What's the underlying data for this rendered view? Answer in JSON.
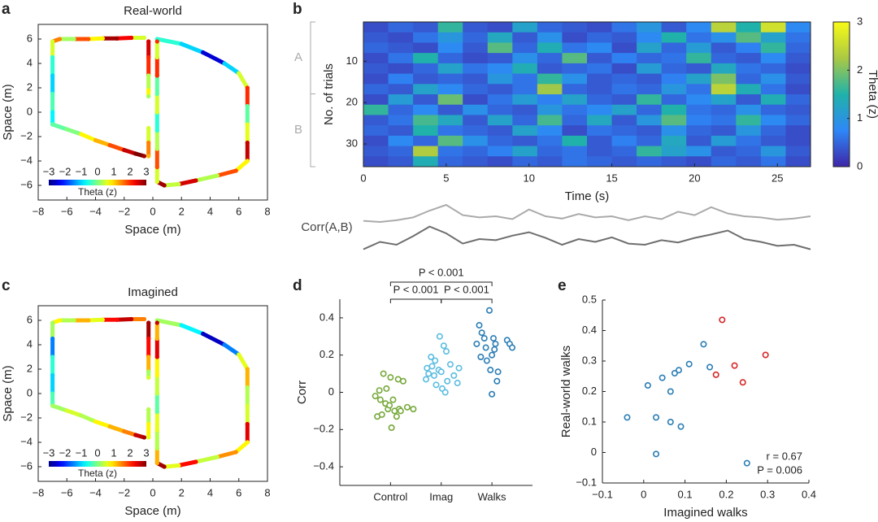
{
  "chart_data": [
    {
      "type": "trajectory",
      "panel": "a",
      "title": "Real-world",
      "xlabel": "Space (m)",
      "ylabel": "Space (m)",
      "xlim": [
        -8,
        8
      ],
      "ylim": [
        -7.2,
        7.2
      ],
      "xticks": [
        {
          "value": -8,
          "label": "−8"
        },
        {
          "value": -6,
          "label": "−6"
        },
        {
          "value": -4,
          "label": "−4"
        },
        {
          "value": -2,
          "label": "−2"
        },
        0,
        2,
        4,
        6,
        8
      ],
      "yticks": [
        {
          "value": -6,
          "label": "−6"
        },
        {
          "value": -4,
          "label": "−4"
        },
        {
          "value": -2,
          "label": "−2"
        },
        0,
        2,
        4,
        6
      ],
      "x": [
        -0.6,
        -1.5,
        -2.5,
        -3.5,
        -4.5,
        -5.5,
        -6.5,
        -7,
        -7,
        -7,
        -7,
        -7,
        -7,
        -6,
        -5,
        -4,
        -3,
        -2,
        -1.2,
        -0.6,
        null,
        -0.3,
        -0.3,
        -0.3,
        -0.3,
        -0.3,
        null,
        -0.3,
        -0.3,
        -0.3,
        null,
        0.3,
        2,
        3.5,
        5,
        6,
        6.6,
        6.6,
        6.6,
        6.6,
        6.6,
        5.8,
        4.5,
        3,
        1.8,
        0.8,
        0.3,
        0.3,
        0.3,
        0.3,
        0.3,
        0.3,
        0.3,
        0.3,
        0.3
      ],
      "y": [
        6.1,
        6.1,
        6.05,
        6.05,
        6,
        6,
        6,
        5.8,
        4.5,
        3,
        1.5,
        0,
        -1,
        -1.4,
        -1.8,
        -2.3,
        -2.7,
        -3.1,
        -3.4,
        -3.6,
        null,
        5.8,
        4.5,
        3,
        1.8,
        1.3,
        null,
        -1.3,
        -2.5,
        -3.6,
        null,
        6,
        5.6,
        4.9,
        4,
        3.2,
        2,
        0.5,
        -1,
        -2.5,
        -4,
        -4.8,
        -5.2,
        -5.6,
        -5.9,
        -6,
        -5.7,
        -4.5,
        -3,
        -1.5,
        0,
        1.5,
        3,
        4.5,
        5.8
      ],
      "theta": [
        0.5,
        2.3,
        2.8,
        0.8,
        1.8,
        0.2,
        1.5,
        0.5,
        -0.5,
        -1,
        -0.3,
        -0.8,
        -0.2,
        0,
        0.8,
        1.2,
        1.8,
        2.6,
        3,
        2.8,
        null,
        2.5,
        2,
        0.3,
        0.8,
        0.2,
        null,
        0.5,
        1.5,
        1.2,
        null,
        -0.5,
        -1,
        -2.5,
        -1,
        0.5,
        2,
        -0.2,
        0.6,
        2.6,
        0.8,
        1.8,
        0.3,
        2.5,
        0.4,
        2.8,
        0.5,
        1.8,
        0.3,
        -0.5,
        0.5,
        -0.2,
        2,
        0.5,
        2
      ],
      "colorbar": {
        "label": "Theta (z)",
        "lim": [
          -3,
          3
        ],
        "ticks": [
          {
            "value": -3,
            "label": "−3"
          },
          {
            "value": -2,
            "label": "−2"
          },
          {
            "value": -1,
            "label": "−1"
          },
          0,
          1,
          2,
          3
        ]
      }
    },
    {
      "type": "heatmap",
      "panel": "b",
      "xlabel": "Time (s)",
      "ylabel": "No. of trials",
      "xlim": [
        0,
        27
      ],
      "ylim": [
        0.5,
        35.5
      ],
      "xticks": [
        0,
        5,
        10,
        15,
        20,
        25
      ],
      "yticks": [
        10,
        20,
        30
      ],
      "xbins": [
        0,
        1.5,
        3,
        4.5,
        6,
        7.5,
        9,
        10.5,
        12,
        13.5,
        15,
        16.5,
        18,
        19.5,
        21,
        22.5,
        24,
        25.5,
        27
      ],
      "ybins": [
        0.5,
        3,
        5.5,
        8,
        10.5,
        13,
        15.5,
        18,
        20.5,
        23,
        25.5,
        28,
        30.5,
        33,
        35.5
      ],
      "z": [
        [
          0.3,
          0.5,
          0.4,
          1.6,
          0.4,
          0.3,
          1.2,
          0.5,
          0.4,
          0.3,
          0.6,
          1.0,
          0.4,
          0.8,
          2.4,
          1.5,
          2.6,
          0.8
        ],
        [
          0.4,
          0.3,
          0.6,
          1.0,
          0.5,
          1.3,
          0.4,
          0.9,
          0.3,
          0.5,
          0.4,
          0.8,
          1.5,
          0.6,
          0.9,
          1.8,
          1.2,
          0.6
        ],
        [
          0.5,
          0.4,
          0.3,
          0.8,
          0.4,
          1.8,
          0.5,
          1.4,
          0.6,
          0.8,
          0.3,
          1.2,
          0.5,
          1.1,
          0.4,
          0.7,
          1.6,
          0.5
        ],
        [
          0.3,
          0.6,
          1.5,
          0.5,
          0.3,
          0.4,
          0.9,
          0.5,
          1.8,
          0.4,
          0.7,
          0.5,
          0.6,
          1.6,
          0.5,
          0.4,
          0.8,
          0.4
        ],
        [
          0.4,
          0.3,
          0.5,
          1.2,
          0.6,
          0.8,
          1.4,
          0.4,
          0.5,
          0.6,
          0.3,
          1.1,
          0.5,
          0.4,
          1.3,
          0.6,
          0.5,
          0.3
        ],
        [
          0.3,
          0.7,
          0.4,
          0.5,
          0.4,
          1.0,
          0.6,
          1.6,
          0.9,
          0.4,
          0.5,
          0.4,
          0.7,
          1.2,
          2.0,
          0.5,
          0.9,
          0.4
        ],
        [
          0.5,
          0.4,
          1.2,
          0.8,
          0.5,
          0.4,
          0.6,
          2.2,
          0.5,
          0.4,
          0.6,
          0.5,
          1.0,
          0.6,
          2.4,
          1.4,
          0.6,
          0.3
        ],
        [
          0.3,
          1.1,
          0.4,
          1.9,
          0.3,
          0.6,
          1.1,
          0.7,
          1.2,
          0.5,
          0.4,
          1.6,
          0.5,
          0.8,
          1.2,
          0.4,
          1.4,
          0.5
        ],
        [
          1.6,
          0.5,
          0.8,
          0.4,
          0.9,
          0.5,
          0.4,
          1.0,
          0.6,
          0.8,
          1.2,
          0.5,
          1.5,
          0.6,
          0.5,
          0.9,
          0.5,
          0.4
        ],
        [
          0.4,
          0.6,
          1.7,
          1.3,
          0.4,
          1.2,
          0.5,
          1.7,
          0.5,
          1.3,
          0.4,
          1.0,
          1.8,
          0.7,
          0.6,
          1.6,
          0.8,
          0.5
        ],
        [
          0.5,
          0.4,
          1.5,
          0.6,
          0.5,
          0.4,
          1.2,
          0.8,
          0.3,
          0.6,
          0.5,
          0.4,
          0.9,
          0.5,
          0.4,
          1.0,
          0.5,
          0.3
        ],
        [
          0.3,
          0.8,
          0.5,
          1.8,
          0.9,
          0.5,
          0.4,
          0.6,
          1.5,
          0.4,
          0.7,
          0.5,
          1.3,
          0.4,
          1.1,
          0.6,
          0.4,
          0.3
        ],
        [
          0.4,
          0.5,
          2.3,
          0.6,
          0.5,
          0.7,
          1.2,
          0.5,
          0.6,
          0.4,
          0.5,
          1.6,
          1.2,
          0.9,
          0.4,
          0.5,
          1.0,
          0.4
        ],
        [
          0.3,
          0.4,
          1.4,
          0.5,
          0.4,
          0.3,
          0.5,
          0.4,
          0.6,
          0.5,
          0.4,
          0.5,
          0.4,
          0.3,
          0.5,
          0.4,
          0.6,
          0.3
        ]
      ],
      "groups": [
        {
          "label": "A",
          "range": [
            0.5,
            17.9
          ]
        },
        {
          "label": "B",
          "range": [
            17.9,
            35.5
          ]
        }
      ],
      "colorbar": {
        "label": "Theta (z)",
        "lim": [
          0,
          3
        ],
        "ticks": [
          0,
          1,
          2,
          3
        ]
      }
    },
    {
      "type": "line",
      "label": "Corr(A,B)",
      "xlim": [
        0,
        27
      ],
      "ylim": [
        0,
        1
      ],
      "x": [
        0,
        1,
        2,
        3,
        4,
        5,
        6,
        7,
        8,
        9,
        10,
        11,
        12,
        13,
        14,
        15,
        16,
        17,
        18,
        19,
        20,
        21,
        22,
        23,
        24,
        25,
        26,
        27
      ],
      "series": [
        {
          "color": "#aaaaaa",
          "values": [
            0.62,
            0.6,
            0.63,
            0.68,
            0.8,
            0.9,
            0.72,
            0.68,
            0.7,
            0.65,
            0.82,
            0.7,
            0.66,
            0.74,
            0.68,
            0.7,
            0.63,
            0.7,
            0.65,
            0.78,
            0.72,
            0.86,
            0.75,
            0.7,
            0.68,
            0.64,
            0.66,
            0.7
          ]
        },
        {
          "color": "#6e6e6e",
          "values": [
            0.12,
            0.25,
            0.2,
            0.35,
            0.52,
            0.4,
            0.22,
            0.3,
            0.28,
            0.36,
            0.42,
            0.32,
            0.2,
            0.3,
            0.25,
            0.33,
            0.22,
            0.2,
            0.28,
            0.24,
            0.32,
            0.38,
            0.45,
            0.3,
            0.25,
            0.18,
            0.2,
            0.12
          ]
        }
      ]
    },
    {
      "type": "trajectory",
      "panel": "c",
      "title": "Imagined",
      "xlabel": "Space (m)",
      "ylabel": "Space (m)",
      "xlim": [
        -8,
        8
      ],
      "ylim": [
        -7.2,
        7.2
      ],
      "xticks": [
        {
          "value": -8,
          "label": "−8"
        },
        {
          "value": -6,
          "label": "−6"
        },
        {
          "value": -4,
          "label": "−4"
        },
        {
          "value": -2,
          "label": "−2"
        },
        0,
        2,
        4,
        6,
        8
      ],
      "yticks": [
        {
          "value": -6,
          "label": "−6"
        },
        {
          "value": -4,
          "label": "−4"
        },
        {
          "value": -2,
          "label": "−2"
        },
        0,
        2,
        4,
        6
      ],
      "x": [
        -0.6,
        -1.5,
        -2.5,
        -3.5,
        -4.5,
        -5.5,
        -6.5,
        -7,
        -7,
        -7,
        -7,
        -7,
        -7,
        -6,
        -5,
        -4,
        -3,
        -2,
        -1.2,
        -0.6,
        null,
        -0.3,
        -0.3,
        -0.3,
        -0.3,
        -0.3,
        null,
        -0.3,
        -0.3,
        -0.3,
        null,
        0.3,
        2,
        3.5,
        5,
        6,
        6.6,
        6.6,
        6.6,
        6.6,
        6.6,
        5.8,
        4.5,
        3,
        1.8,
        0.8,
        0.3,
        0.3,
        0.3,
        0.3,
        0.3,
        0.3,
        0.3,
        0.3,
        0.3
      ],
      "y": [
        6.1,
        6.1,
        6.05,
        6.05,
        6,
        6,
        6,
        5.8,
        4.5,
        3,
        1.5,
        0,
        -1,
        -1.4,
        -1.8,
        -2.3,
        -2.7,
        -3.1,
        -3.4,
        -3.6,
        null,
        5.8,
        4.5,
        3,
        1.8,
        1.3,
        null,
        -1.3,
        -2.5,
        -3.6,
        null,
        6,
        5.6,
        4.9,
        4,
        3.2,
        2,
        0.5,
        -1,
        -2.5,
        -4,
        -4.8,
        -5.2,
        -5.6,
        -5.9,
        -6,
        -5.7,
        -4.5,
        -3,
        -1.5,
        0,
        1.5,
        3,
        4.5,
        5.8
      ],
      "theta": [
        1.5,
        2.6,
        2.2,
        0.6,
        1.2,
        0.3,
        0.8,
        0.2,
        -1.5,
        -0.5,
        -1,
        -0.3,
        0.2,
        0.5,
        0.3,
        0.8,
        1.2,
        1.5,
        2.6,
        2.8,
        null,
        2.8,
        2.2,
        1.2,
        0.2,
        0.5,
        null,
        0.3,
        0.8,
        0.6,
        null,
        0.2,
        -0.8,
        -2.6,
        -1.5,
        0.6,
        1.2,
        0.3,
        0.5,
        2.4,
        0.8,
        1.4,
        0.4,
        2.2,
        0.6,
        2.8,
        1.2,
        0.3,
        0.6,
        -0.2,
        0.4,
        0.8,
        2.4,
        1.2,
        2.6
      ],
      "colorbar": {
        "label": "Theta (z)",
        "lim": [
          -3,
          3
        ],
        "ticks": [
          {
            "value": -3,
            "label": "−3"
          },
          {
            "value": -2,
            "label": "−2"
          },
          {
            "value": -1,
            "label": "−1"
          },
          0,
          1,
          2,
          3
        ]
      }
    },
    {
      "type": "scatter",
      "panel": "d",
      "ylabel": "Corr",
      "xlim": [
        0,
        3.8
      ],
      "ylim": [
        -0.5,
        0.5
      ],
      "xticks": [
        {
          "value": 1,
          "label": "Control"
        },
        {
          "value": 2,
          "label": "Imag"
        },
        {
          "value": 3,
          "label": "Walks"
        }
      ],
      "yticks": [
        {
          "value": -0.4,
          "label": "−0.4"
        },
        {
          "value": -0.2,
          "label": "−0.2"
        },
        0,
        0.2,
        0.4
      ],
      "series": [
        {
          "color": "#76a83a",
          "x": [
            0.7,
            0.74,
            0.78,
            0.8,
            0.83,
            0.86,
            0.9,
            0.92,
            0.95,
            0.98,
            1.0,
            1.02,
            1.05,
            1.08,
            1.12,
            1.15,
            1.17,
            1.2,
            1.25,
            1.33,
            1.45
          ],
          "values": [
            -0.02,
            -0.13,
            0.01,
            -0.04,
            -0.12,
            0.1,
            -0.06,
            0.02,
            -0.09,
            -0.07,
            0.08,
            -0.19,
            -0.04,
            -0.1,
            -0.13,
            0.07,
            -0.09,
            -0.1,
            0.06,
            -0.08,
            -0.09
          ]
        },
        {
          "color": "#5bbde0",
          "x": [
            1.7,
            1.72,
            1.75,
            1.8,
            1.82,
            1.86,
            1.88,
            1.9,
            1.95,
            1.97,
            2.0,
            2.02,
            2.05,
            2.08,
            2.1,
            2.12,
            2.18,
            2.25,
            2.32,
            2.35
          ],
          "values": [
            0.07,
            0.13,
            0.1,
            0.19,
            0.14,
            0.09,
            0.17,
            0.04,
            0.12,
            0.3,
            0.11,
            0.02,
            0.25,
            0.0,
            0.22,
            0.06,
            0.15,
            0.09,
            0.05,
            0.13
          ]
        },
        {
          "color": "#2a7db5",
          "x": [
            2.7,
            2.75,
            2.78,
            2.8,
            2.85,
            2.88,
            2.9,
            2.95,
            2.97,
            3.0,
            3.0,
            3.03,
            3.05,
            3.07,
            3.1,
            3.12,
            3.3,
            3.35,
            3.4
          ],
          "values": [
            0.26,
            0.36,
            0.19,
            0.32,
            0.29,
            0.24,
            0.17,
            0.44,
            0.12,
            0.2,
            -0.01,
            0.29,
            0.23,
            0.26,
            0.06,
            0.11,
            0.28,
            0.26,
            0.24
          ]
        }
      ],
      "comparisons": [
        {
          "label": "P < 0.001",
          "between": [
            1,
            2
          ]
        },
        {
          "label": "P < 0.001",
          "between": [
            2,
            3
          ]
        },
        {
          "label": "P < 0.001",
          "between": [
            1,
            3
          ]
        }
      ]
    },
    {
      "type": "scatter",
      "panel": "e",
      "xlabel": "Imagined walks",
      "ylabel": "Real-world walks",
      "xlim": [
        -0.1,
        0.4
      ],
      "ylim": [
        -0.1,
        0.5
      ],
      "xticks": [
        {
          "value": -0.1,
          "label": "−0.1"
        },
        0,
        0.1,
        0.2,
        0.3,
        0.4
      ],
      "yticks": [
        {
          "value": -0.1,
          "label": "−0.1"
        },
        0,
        0.1,
        0.2,
        0.3,
        0.4,
        0.5
      ],
      "series": [
        {
          "color": "#2a7db5",
          "x": [
            -0.04,
            0.03,
            0.03,
            0.01,
            0.045,
            0.065,
            0.075,
            0.085,
            0.065,
            0.09,
            0.11,
            0.145,
            0.16,
            0.25
          ],
          "values": [
            0.115,
            0.115,
            -0.005,
            0.22,
            0.245,
            0.2,
            0.26,
            0.27,
            0.1,
            0.085,
            0.29,
            0.355,
            0.28,
            -0.035
          ]
        },
        {
          "color": "#d62728",
          "x": [
            0.19,
            0.175,
            0.22,
            0.24,
            0.295
          ],
          "values": [
            0.435,
            0.255,
            0.285,
            0.23,
            0.32
          ]
        }
      ],
      "annotations": [
        "r = 0.67",
        "P = 0.006"
      ]
    }
  ]
}
